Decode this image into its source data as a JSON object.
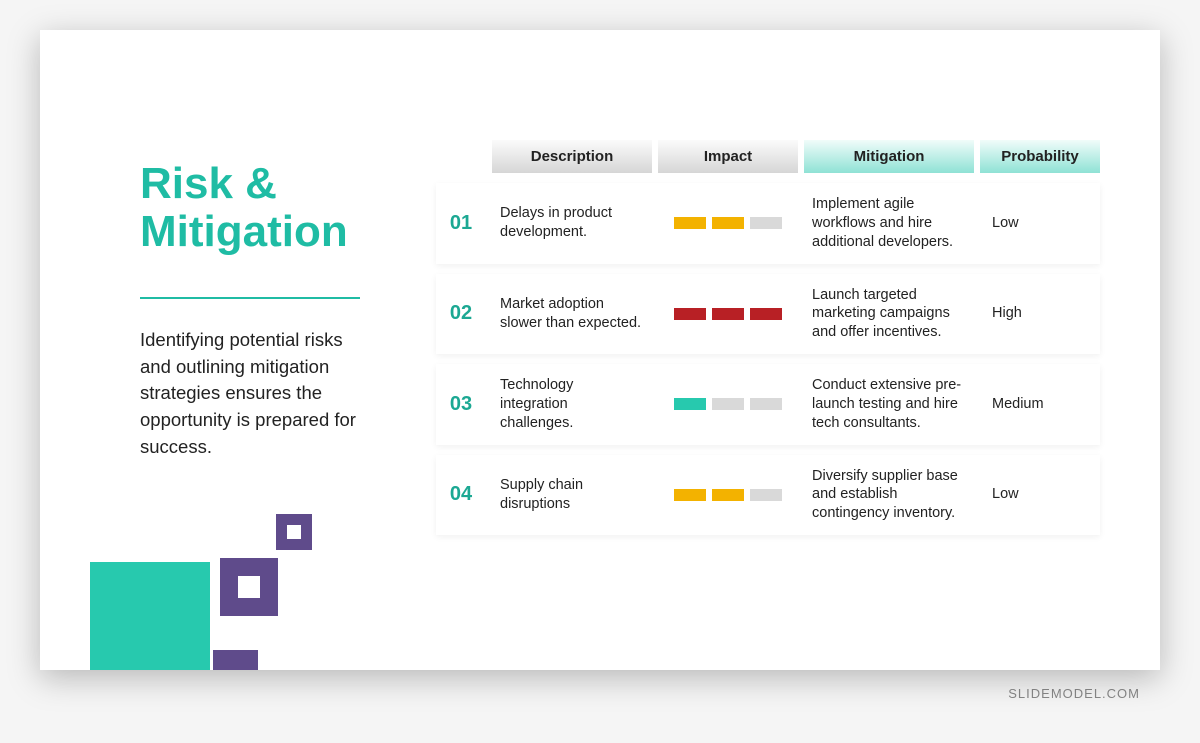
{
  "slide": {
    "title_line1": "Risk &",
    "title_line2": "Mitigation",
    "subtitle": "Identifying potential risks and outlining mitigation strategies ensures the opportunity is prepared for success.",
    "accent_color": "#1fbca4",
    "decor_teal": "#27c9ae",
    "decor_purple": "#5f4b8b"
  },
  "table": {
    "headers": {
      "description": "Description",
      "impact": "Impact",
      "mitigation": "Mitigation",
      "probability": "Probability"
    },
    "header_styles": {
      "description": "gray",
      "impact": "gray",
      "mitigation": "teal",
      "probability": "teal",
      "gray_gradient": [
        "#fbfbfb",
        "#d6d6d6"
      ],
      "teal_gradient": [
        "#f0fcfa",
        "#8fe2d5"
      ]
    },
    "impact_colors": {
      "yellow": "#f3b200",
      "red": "#b82025",
      "teal": "#27c9ae",
      "off": "#d9d9d9"
    },
    "rows": [
      {
        "num": "01",
        "description": "Delays in product development.",
        "impact_bars": [
          "yellow",
          "yellow",
          "off"
        ],
        "mitigation": "Implement agile workflows and hire additional developers.",
        "probability": "Low"
      },
      {
        "num": "02",
        "description": "Market adoption slower than expected.",
        "impact_bars": [
          "red",
          "red",
          "red"
        ],
        "mitigation": "Launch targeted marketing campaigns and offer incentives.",
        "probability": "High"
      },
      {
        "num": "03",
        "description": "Technology integration challenges.",
        "impact_bars": [
          "teal",
          "off",
          "off"
        ],
        "mitigation": "Conduct extensive pre-launch testing and hire tech consultants.",
        "probability": "Medium"
      },
      {
        "num": "04",
        "description": "Supply chain disruptions",
        "impact_bars": [
          "yellow",
          "yellow",
          "off"
        ],
        "mitigation": "Diversify supplier base and establish contingency inventory.",
        "probability": "Low"
      }
    ]
  },
  "watermark": "SLIDEMODEL.COM"
}
